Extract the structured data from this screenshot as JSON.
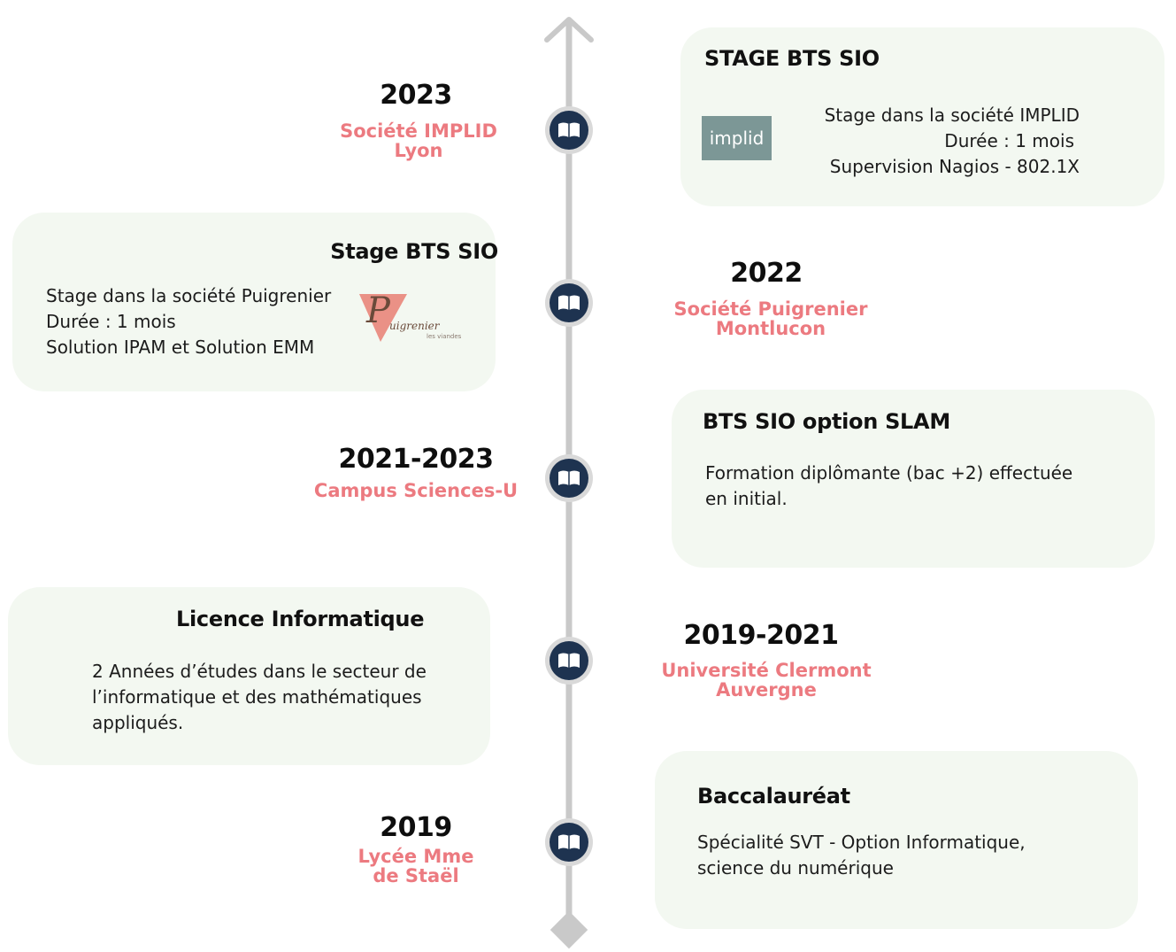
{
  "colors": {
    "axis": "#c9c9c9",
    "node_fill": "#1e3350",
    "node_ring": "#d9d9d9",
    "card_bg": "#f3f8f1",
    "accent": "#ec7a80"
  },
  "icons": {
    "node": "open-book-icon",
    "top": "arrow-up-icon",
    "bottom": "diamond-icon"
  },
  "entries": [
    {
      "year": "2023",
      "place_lines": [
        "Société IMPLID",
        "Lyon"
      ],
      "card": {
        "title": "STAGE BTS SIO",
        "lines": [
          "Stage dans la société IMPLID",
          "Durée : 1 mois",
          "Supervision Nagios - 802.1X"
        ],
        "logo": "implid"
      }
    },
    {
      "year": "2022",
      "place_lines": [
        "Société Puigrenier",
        "Montlucon"
      ],
      "card": {
        "title": "Stage BTS SIO",
        "lines": [
          "Stage dans la société Puigrenier",
          "Durée : 1 mois",
          "Solution IPAM et Solution EMM"
        ],
        "logo": "Puigrenier"
      }
    },
    {
      "year": "2021-2023",
      "place_lines": [
        "Campus Sciences-U"
      ],
      "card": {
        "title": "BTS SIO option SLAM",
        "lines": [
          "Formation diplômante (bac +2) effectuée",
          "en initial."
        ]
      }
    },
    {
      "year": "2019-2021",
      "place_lines": [
        "Université Clermont",
        "Auvergne"
      ],
      "card": {
        "title": "Licence Informatique",
        "lines": [
          "2 Années d’études dans le secteur de",
          "l’informatique et des mathématiques",
          "appliqués."
        ]
      }
    },
    {
      "year": "2019",
      "place_lines": [
        "Lycée Mme",
        "de Staël"
      ],
      "card": {
        "title": "Baccalauréat",
        "lines": [
          "Spécialité SVT - Option Informatique,",
          "science du numérique"
        ]
      }
    }
  ],
  "puigrenier_logo": {
    "letter": "P",
    "word": "uigrenier",
    "sub": "les viandes"
  }
}
